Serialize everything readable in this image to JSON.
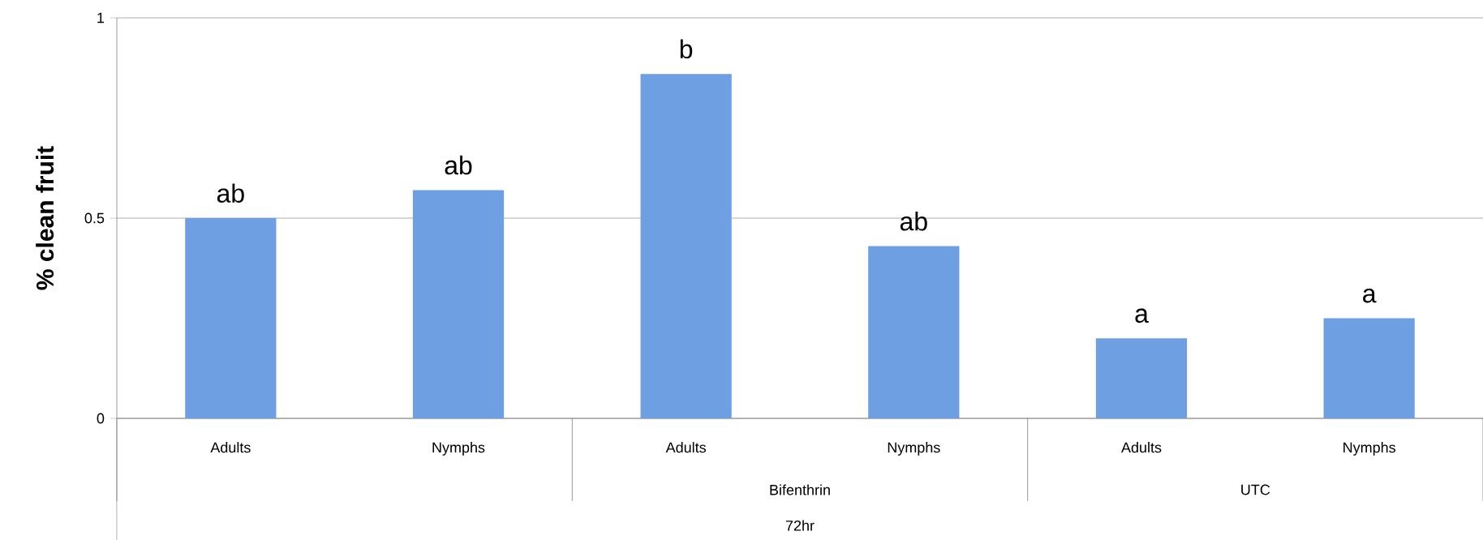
{
  "chart_data": {
    "type": "bar",
    "ylabel": "% clean fruit",
    "categories": [
      "Adults",
      "Nymphs",
      "Adults",
      "Nymphs",
      "Adults",
      "Nymphs"
    ],
    "values": [
      0.5,
      0.57,
      0.86,
      0.43,
      0.2,
      0.25
    ],
    "value_labels": [
      "ab",
      "ab",
      "b",
      "ab",
      "a",
      "a"
    ],
    "color": "#6f9fe3",
    "ylim": [
      0,
      1
    ],
    "yticks": [
      0,
      0.5,
      1
    ],
    "grid": "y",
    "annotations": [
      "Bifenthrin",
      "UTC",
      "72hr"
    ]
  }
}
